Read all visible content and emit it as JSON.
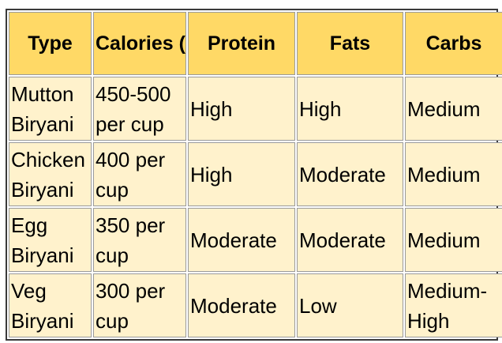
{
  "table": {
    "headers": [
      [
        "Type"
      ],
      [
        "Calories",
        "(approx)"
      ],
      [
        "Protein"
      ],
      [
        "Fats"
      ],
      [
        "Carbs"
      ]
    ],
    "rows": [
      {
        "type": [
          "Mutton",
          "Biryani"
        ],
        "calories": [
          "450-500",
          "per cup"
        ],
        "protein": [
          "High"
        ],
        "fats": [
          "High"
        ],
        "carbs": [
          "Medium"
        ]
      },
      {
        "type": [
          "Chicken",
          "Biryani"
        ],
        "calories": [
          "400 per",
          "cup"
        ],
        "protein": [
          "High"
        ],
        "fats": [
          "Moderate"
        ],
        "carbs": [
          "Medium"
        ]
      },
      {
        "type": [
          "Egg",
          "Biryani"
        ],
        "calories": [
          "350 per",
          "cup"
        ],
        "protein": [
          "Moderate"
        ],
        "fats": [
          "Moderate"
        ],
        "carbs": [
          "Medium"
        ]
      },
      {
        "type": [
          "Veg",
          "Biryani"
        ],
        "calories": [
          "300 per",
          "cup"
        ],
        "protein": [
          "Moderate"
        ],
        "fats": [
          "Low"
        ],
        "carbs": [
          "Medium-",
          "High"
        ]
      }
    ],
    "colors": {
      "header_bg": "#ffd966",
      "cell_bg": "#fff2cc",
      "border": "#9a9a9a"
    }
  }
}
